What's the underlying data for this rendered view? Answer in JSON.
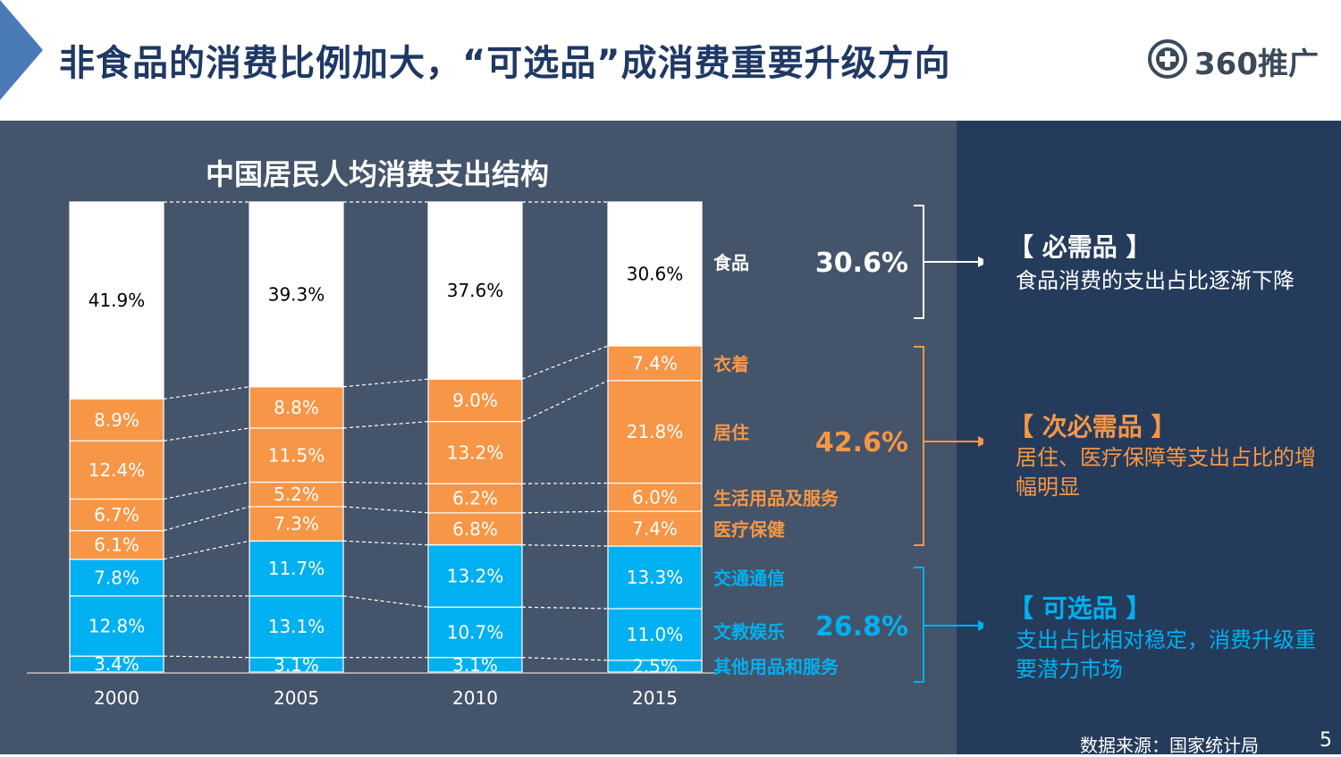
{
  "header": {
    "title": "非食品的消费比例加大，“可选品”成消费重要升级方向",
    "logo_text": "360推广",
    "accent": "#4a7ab8"
  },
  "chart_data": {
    "type": "bar",
    "stacked": true,
    "title": "中国居民人均消费支出结构",
    "categories": [
      "2000",
      "2005",
      "2010",
      "2015"
    ],
    "unit": "%",
    "series": [
      {
        "name": "其他用品和服务",
        "values": [
          3.4,
          3.1,
          3.1,
          2.5
        ],
        "color": "#00b0f0"
      },
      {
        "name": "文教娱乐",
        "values": [
          12.8,
          13.1,
          10.7,
          11.0
        ],
        "color": "#00b0f0"
      },
      {
        "name": "交通通信",
        "values": [
          7.8,
          11.7,
          13.2,
          13.3
        ],
        "color": "#00b0f0"
      },
      {
        "name": "医疗保健",
        "values": [
          6.1,
          7.3,
          6.8,
          7.4
        ],
        "color": "#f79646"
      },
      {
        "name": "生活用品及服务",
        "values": [
          6.7,
          5.2,
          6.2,
          6.0
        ],
        "color": "#f79646"
      },
      {
        "name": "居住",
        "values": [
          12.4,
          11.5,
          13.2,
          21.8
        ],
        "color": "#f79646"
      },
      {
        "name": "衣着",
        "values": [
          8.9,
          8.8,
          9.0,
          7.4
        ],
        "color": "#f79646"
      },
      {
        "name": "食品",
        "values": [
          41.9,
          39.3,
          37.6,
          30.6
        ],
        "color": "#ffffff"
      }
    ],
    "series_labels": [
      {
        "name": "食品",
        "color": "#ffffff"
      },
      {
        "name": "衣着",
        "color": "#f79646"
      },
      {
        "name": "居住",
        "color": "#f79646"
      },
      {
        "name": "生活用品及服务",
        "color": "#f79646"
      },
      {
        "name": "医疗保健",
        "color": "#f79646"
      },
      {
        "name": "交通通信",
        "color": "#00b0f0"
      },
      {
        "name": "文教娱乐",
        "color": "#00b0f0"
      },
      {
        "name": "其他用品和服务",
        "color": "#00b0f0"
      }
    ],
    "group_totals": [
      {
        "value": "30.6%",
        "color": "#ffffff"
      },
      {
        "value": "42.6%",
        "color": "#f79646"
      },
      {
        "value": "26.8%",
        "color": "#00b0f0"
      }
    ]
  },
  "annotations": [
    {
      "heading": "【 必需品 】",
      "description": "食品消费的支出占比逐渐下降",
      "color": "#ffffff"
    },
    {
      "heading": "【 次必需品 】",
      "description": "居住、医疗保障等支出占比的增幅明显",
      "color": "#f79646"
    },
    {
      "heading": "【 可选品 】",
      "description": "支出占比相对稳定，消费升级重要潜力市场",
      "color": "#00b0f0"
    }
  ],
  "footer": {
    "source": "数据来源：国家统计局",
    "page_number": "5"
  }
}
